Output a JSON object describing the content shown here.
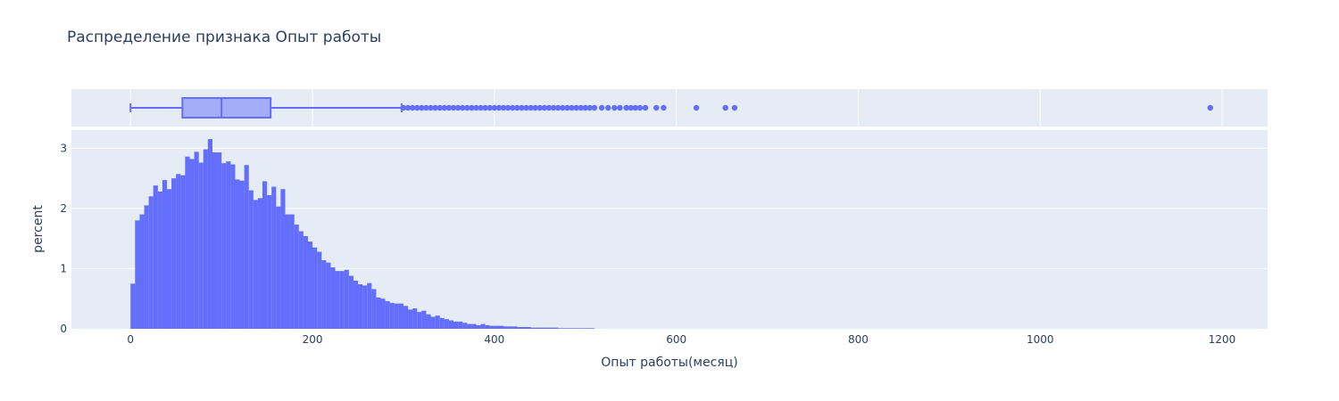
{
  "chart_data": {
    "type": "histogram",
    "title": "Распределение признака Опыт работы",
    "xlabel": "Опыт работы(месяц)",
    "ylabel": "percent",
    "xlim": [
      -65,
      1250
    ],
    "ylim": [
      0,
      3.3
    ],
    "x_ticks": [
      0,
      200,
      400,
      600,
      800,
      1000,
      1200
    ],
    "y_ticks": [
      0,
      1,
      2,
      3
    ],
    "bin_width": 5,
    "bin_start": 0,
    "bar_color": "#636efa",
    "values": [
      0.75,
      1.8,
      1.9,
      2.05,
      2.2,
      2.38,
      2.28,
      2.47,
      2.32,
      2.5,
      2.57,
      2.55,
      2.86,
      2.82,
      2.94,
      2.76,
      2.98,
      3.15,
      2.93,
      2.93,
      2.75,
      2.78,
      2.73,
      2.48,
      2.46,
      2.72,
      2.3,
      2.14,
      2.17,
      2.45,
      2.22,
      2.36,
      2.03,
      2.32,
      1.9,
      1.9,
      1.73,
      1.62,
      1.54,
      1.45,
      1.35,
      1.28,
      1.14,
      1.1,
      1.02,
      0.96,
      0.96,
      0.98,
      0.88,
      0.8,
      0.74,
      0.72,
      0.76,
      0.66,
      0.52,
      0.5,
      0.46,
      0.43,
      0.42,
      0.42,
      0.38,
      0.32,
      0.34,
      0.28,
      0.3,
      0.24,
      0.2,
      0.22,
      0.18,
      0.16,
      0.14,
      0.12,
      0.12,
      0.1,
      0.08,
      0.08,
      0.06,
      0.08,
      0.06,
      0.05,
      0.05,
      0.05,
      0.04,
      0.04,
      0.04,
      0.03,
      0.03,
      0.03,
      0.02,
      0.02,
      0.02,
      0.02,
      0.02,
      0.02,
      0.01,
      0.01,
      0.01,
      0.01,
      0.01,
      0.01,
      0.01,
      0.01
    ],
    "box": {
      "min": 0,
      "q1": 57,
      "median": 100,
      "q3": 154,
      "upper_fence": 298,
      "outliers": [
        300,
        305,
        310,
        315,
        320,
        325,
        330,
        335,
        340,
        345,
        350,
        355,
        360,
        365,
        370,
        375,
        380,
        385,
        390,
        395,
        400,
        405,
        410,
        415,
        420,
        425,
        430,
        435,
        440,
        445,
        450,
        455,
        460,
        465,
        470,
        475,
        480,
        485,
        490,
        495,
        500,
        505,
        510,
        518,
        525,
        532,
        538,
        545,
        550,
        555,
        560,
        566,
        578,
        586,
        622,
        654,
        664,
        1187
      ]
    }
  }
}
